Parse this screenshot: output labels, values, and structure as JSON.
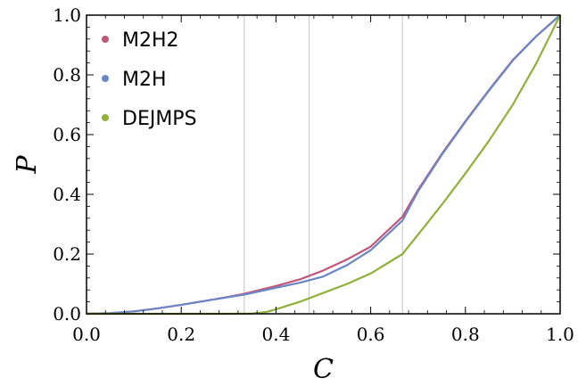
{
  "chart_data": {
    "type": "line",
    "xlabel": "C",
    "ylabel": "P",
    "xlim": [
      0,
      1
    ],
    "ylim": [
      0,
      1
    ],
    "xticks": [
      "0.0",
      "0.2",
      "0.4",
      "0.6",
      "0.8",
      "1.0"
    ],
    "yticks": [
      "0.0",
      "0.2",
      "0.4",
      "0.6",
      "0.8",
      "1.0"
    ],
    "vlines": [
      0.333,
      0.47,
      0.667
    ],
    "grid": false,
    "legend_position": "top-left",
    "series": [
      {
        "name": "M2H2",
        "color": "#c0577a",
        "x": [
          0,
          0.05,
          0.1,
          0.15,
          0.2,
          0.25,
          0.3,
          0.333,
          0.4,
          0.45,
          0.5,
          0.55,
          0.6,
          0.667,
          0.7,
          0.75,
          0.8,
          0.85,
          0.9,
          0.95,
          1.0
        ],
        "y": [
          0,
          0.002,
          0.008,
          0.018,
          0.03,
          0.043,
          0.057,
          0.067,
          0.093,
          0.115,
          0.145,
          0.182,
          0.225,
          0.325,
          0.415,
          0.535,
          0.645,
          0.75,
          0.85,
          0.93,
          1.0
        ]
      },
      {
        "name": "M2H",
        "color": "#6a86c4",
        "x": [
          0,
          0.05,
          0.1,
          0.15,
          0.2,
          0.25,
          0.3,
          0.333,
          0.4,
          0.45,
          0.5,
          0.55,
          0.6,
          0.667,
          0.7,
          0.75,
          0.8,
          0.85,
          0.9,
          0.95,
          1.0
        ],
        "y": [
          0,
          0.002,
          0.008,
          0.018,
          0.03,
          0.043,
          0.056,
          0.064,
          0.087,
          0.104,
          0.125,
          0.163,
          0.213,
          0.312,
          0.41,
          0.532,
          0.643,
          0.748,
          0.848,
          0.93,
          1.0
        ]
      },
      {
        "name": "DEJMPS",
        "color": "#8fb03a",
        "x": [
          0,
          0.1,
          0.2,
          0.3,
          0.35,
          0.38,
          0.4,
          0.45,
          0.5,
          0.55,
          0.6,
          0.667,
          0.7,
          0.75,
          0.8,
          0.85,
          0.9,
          0.95,
          1.0
        ],
        "y": [
          0,
          0,
          0,
          0,
          0.001,
          0.006,
          0.015,
          0.04,
          0.07,
          0.1,
          0.135,
          0.2,
          0.265,
          0.365,
          0.47,
          0.58,
          0.7,
          0.84,
          1.0
        ]
      }
    ]
  }
}
